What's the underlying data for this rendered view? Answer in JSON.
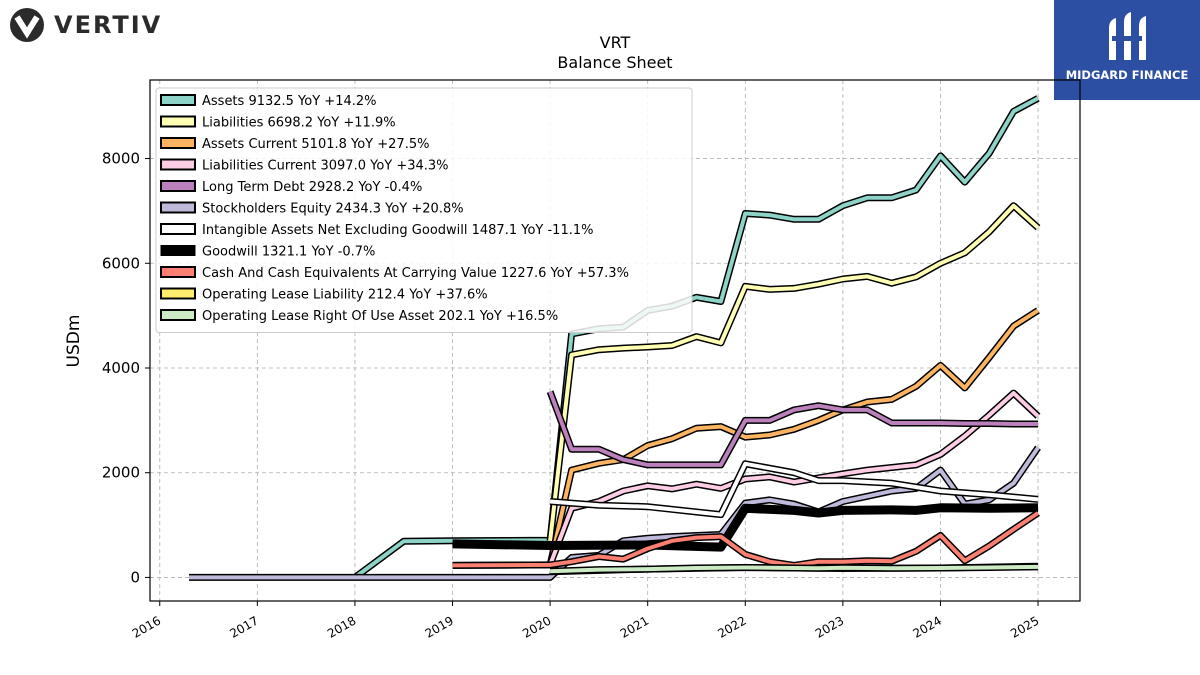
{
  "header": {
    "brand_name": "VERTIV",
    "partner_name": "MIDGARD FINANCE"
  },
  "chart_data": {
    "type": "line",
    "title": "VRT",
    "subtitle": "Balance  Sheet",
    "xlabel": "",
    "ylabel": "USDm",
    "xlim": [
      2015.9,
      2025.43
    ],
    "ylim": [
      -450,
      9500
    ],
    "x_ticks": [
      "2016",
      "2017",
      "2018",
      "2019",
      "2020",
      "2021",
      "2022",
      "2023",
      "2024",
      "2025"
    ],
    "y_ticks": [
      0,
      2000,
      4000,
      6000,
      8000
    ],
    "grid": true,
    "legend_position": "top-left",
    "series": [
      {
        "name": "Assets  9132.5 YoY +14.2%",
        "color": "#8dd3c7",
        "width": 4,
        "points": [
          [
            2018.0,
            0
          ],
          [
            2018.5,
            690
          ],
          [
            2019.0,
            700
          ],
          [
            2020.0,
            710
          ],
          [
            2020.0,
            700
          ],
          [
            2020.22,
            4650
          ],
          [
            2020.5,
            4750
          ],
          [
            2020.75,
            4780
          ],
          [
            2021.0,
            5100
          ],
          [
            2021.25,
            5180
          ],
          [
            2021.5,
            5350
          ],
          [
            2021.75,
            5270
          ],
          [
            2022.0,
            6950
          ],
          [
            2022.25,
            6920
          ],
          [
            2022.5,
            6840
          ],
          [
            2022.75,
            6840
          ],
          [
            2023.0,
            7100
          ],
          [
            2023.25,
            7250
          ],
          [
            2023.5,
            7250
          ],
          [
            2023.75,
            7400
          ],
          [
            2024.0,
            8050
          ],
          [
            2024.25,
            7550
          ],
          [
            2024.5,
            8100
          ],
          [
            2024.75,
            8900
          ],
          [
            2025.0,
            9150
          ]
        ]
      },
      {
        "name": "Liabilities  6698.2 YoY +11.9%",
        "color": "#ffffb3",
        "width": 4,
        "points": [
          [
            2020.0,
            700
          ],
          [
            2020.22,
            4250
          ],
          [
            2020.5,
            4350
          ],
          [
            2020.75,
            4380
          ],
          [
            2021.0,
            4400
          ],
          [
            2021.25,
            4430
          ],
          [
            2021.5,
            4600
          ],
          [
            2021.75,
            4480
          ],
          [
            2022.0,
            5560
          ],
          [
            2022.25,
            5500
          ],
          [
            2022.5,
            5520
          ],
          [
            2022.75,
            5600
          ],
          [
            2023.0,
            5700
          ],
          [
            2023.25,
            5750
          ],
          [
            2023.5,
            5620
          ],
          [
            2023.75,
            5740
          ],
          [
            2024.0,
            6000
          ],
          [
            2024.25,
            6200
          ],
          [
            2024.5,
            6600
          ],
          [
            2024.75,
            7100
          ],
          [
            2025.0,
            6680
          ]
        ]
      },
      {
        "name": "Assets Current  5101.8 YoY +27.5%",
        "color": "#fdb462",
        "width": 4,
        "points": [
          [
            2019.0,
            230
          ],
          [
            2020.0,
            240
          ],
          [
            2020.22,
            2050
          ],
          [
            2020.5,
            2180
          ],
          [
            2020.75,
            2250
          ],
          [
            2021.0,
            2520
          ],
          [
            2021.25,
            2650
          ],
          [
            2021.5,
            2850
          ],
          [
            2021.75,
            2880
          ],
          [
            2022.0,
            2680
          ],
          [
            2022.25,
            2720
          ],
          [
            2022.5,
            2830
          ],
          [
            2022.75,
            3000
          ],
          [
            2023.0,
            3200
          ],
          [
            2023.25,
            3350
          ],
          [
            2023.5,
            3400
          ],
          [
            2023.75,
            3650
          ],
          [
            2024.0,
            4050
          ],
          [
            2024.25,
            3620
          ],
          [
            2024.5,
            4200
          ],
          [
            2024.75,
            4800
          ],
          [
            2025.0,
            5100
          ]
        ]
      },
      {
        "name": "Liabilities Current  3097.0 YoY +34.3%",
        "color": "#fccde5",
        "width": 4,
        "points": [
          [
            2020.0,
            240
          ],
          [
            2020.22,
            1320
          ],
          [
            2020.5,
            1450
          ],
          [
            2020.75,
            1650
          ],
          [
            2021.0,
            1750
          ],
          [
            2021.25,
            1690
          ],
          [
            2021.5,
            1780
          ],
          [
            2021.75,
            1700
          ],
          [
            2022.0,
            1880
          ],
          [
            2022.25,
            1920
          ],
          [
            2022.5,
            1820
          ],
          [
            2022.75,
            1900
          ],
          [
            2023.0,
            1980
          ],
          [
            2023.25,
            2050
          ],
          [
            2023.5,
            2100
          ],
          [
            2023.75,
            2150
          ],
          [
            2024.0,
            2350
          ],
          [
            2024.25,
            2700
          ],
          [
            2024.5,
            3100
          ],
          [
            2024.75,
            3520
          ],
          [
            2025.0,
            3080
          ]
        ]
      },
      {
        "name": "Long Term Debt  2928.2 YoY -0.4%",
        "color": "#bc80bd",
        "width": 4,
        "points": [
          [
            2020.0,
            3550
          ],
          [
            2020.22,
            2450
          ],
          [
            2020.5,
            2450
          ],
          [
            2020.75,
            2250
          ],
          [
            2021.0,
            2150
          ],
          [
            2021.25,
            2150
          ],
          [
            2021.5,
            2150
          ],
          [
            2021.75,
            2150
          ],
          [
            2022.0,
            3000
          ],
          [
            2022.25,
            3000
          ],
          [
            2022.5,
            3200
          ],
          [
            2022.75,
            3280
          ],
          [
            2023.0,
            3200
          ],
          [
            2023.25,
            3200
          ],
          [
            2023.5,
            2950
          ],
          [
            2023.75,
            2950
          ],
          [
            2024.0,
            2950
          ],
          [
            2024.25,
            2940
          ],
          [
            2024.5,
            2940
          ],
          [
            2024.75,
            2930
          ],
          [
            2025.0,
            2930
          ]
        ]
      },
      {
        "name": "Stockholders Equity  2434.3 YoY +20.8%",
        "color": "#bebada",
        "width": 4,
        "points": [
          [
            2016.3,
            0
          ],
          [
            2019.75,
            0
          ],
          [
            2020.0,
            0
          ],
          [
            2020.22,
            380
          ],
          [
            2020.5,
            420
          ],
          [
            2020.75,
            700
          ],
          [
            2021.0,
            750
          ],
          [
            2021.25,
            780
          ],
          [
            2021.5,
            800
          ],
          [
            2021.75,
            820
          ],
          [
            2022.0,
            1420
          ],
          [
            2022.25,
            1480
          ],
          [
            2022.5,
            1400
          ],
          [
            2022.75,
            1250
          ],
          [
            2023.0,
            1450
          ],
          [
            2023.25,
            1550
          ],
          [
            2023.5,
            1650
          ],
          [
            2023.75,
            1700
          ],
          [
            2024.0,
            2050
          ],
          [
            2024.25,
            1400
          ],
          [
            2024.5,
            1480
          ],
          [
            2024.75,
            1800
          ],
          [
            2025.0,
            2480
          ]
        ]
      },
      {
        "name": "Intangible Assets Net Excluding Goodwill  1487.1 YoY -11.1%",
        "color": "#ffffff",
        "width": 4,
        "points": [
          [
            2020.0,
            1450
          ],
          [
            2020.5,
            1380
          ],
          [
            2021.0,
            1350
          ],
          [
            2021.5,
            1250
          ],
          [
            2021.75,
            1200
          ],
          [
            2022.0,
            2170
          ],
          [
            2022.5,
            2000
          ],
          [
            2022.75,
            1850
          ],
          [
            2023.0,
            1850
          ],
          [
            2023.5,
            1800
          ],
          [
            2024.0,
            1650
          ],
          [
            2024.5,
            1580
          ],
          [
            2025.0,
            1490
          ]
        ]
      },
      {
        "name": "Goodwill  1321.1 YoY -0.7%",
        "color": "#000000",
        "width": 6,
        "points": [
          [
            2019.0,
            640
          ],
          [
            2020.0,
            610
          ],
          [
            2021.0,
            620
          ],
          [
            2021.75,
            580
          ],
          [
            2022.0,
            1320
          ],
          [
            2022.5,
            1280
          ],
          [
            2022.75,
            1230
          ],
          [
            2023.0,
            1280
          ],
          [
            2023.5,
            1290
          ],
          [
            2023.75,
            1280
          ],
          [
            2024.0,
            1330
          ],
          [
            2024.5,
            1320
          ],
          [
            2025.0,
            1330
          ]
        ]
      },
      {
        "name": "Cash And Cash Equivalents At Carrying Value  1227.6 YoY +57.3%",
        "color": "#fb8072",
        "width": 4,
        "points": [
          [
            2019.0,
            230
          ],
          [
            2020.0,
            240
          ],
          [
            2020.22,
            300
          ],
          [
            2020.5,
            400
          ],
          [
            2020.75,
            350
          ],
          [
            2021.0,
            550
          ],
          [
            2021.25,
            700
          ],
          [
            2021.5,
            760
          ],
          [
            2021.75,
            780
          ],
          [
            2022.0,
            440
          ],
          [
            2022.25,
            300
          ],
          [
            2022.5,
            230
          ],
          [
            2022.75,
            300
          ],
          [
            2023.0,
            300
          ],
          [
            2023.25,
            320
          ],
          [
            2023.5,
            310
          ],
          [
            2023.75,
            500
          ],
          [
            2024.0,
            800
          ],
          [
            2024.25,
            320
          ],
          [
            2024.5,
            600
          ],
          [
            2024.75,
            920
          ],
          [
            2025.0,
            1230
          ]
        ]
      },
      {
        "name": "Operating Lease Liability  212.4 YoY +37.6%",
        "color": "#ffed6f",
        "width": 4,
        "points": [
          [
            2020.0,
            110
          ],
          [
            2021.0,
            160
          ],
          [
            2022.0,
            190
          ],
          [
            2023.0,
            170
          ],
          [
            2024.0,
            180
          ],
          [
            2025.0,
            212
          ]
        ]
      },
      {
        "name": "Operating Lease Right Of Use Asset  202.1 YoY +16.5%",
        "color": "#ccebc5",
        "width": 4,
        "points": [
          [
            2020.0,
            120
          ],
          [
            2020.5,
            150
          ],
          [
            2021.0,
            160
          ],
          [
            2021.5,
            180
          ],
          [
            2022.0,
            190
          ],
          [
            2022.5,
            180
          ],
          [
            2022.75,
            175
          ],
          [
            2023.0,
            185
          ],
          [
            2023.5,
            175
          ],
          [
            2024.0,
            180
          ],
          [
            2024.5,
            190
          ],
          [
            2025.0,
            202
          ]
        ]
      }
    ]
  }
}
